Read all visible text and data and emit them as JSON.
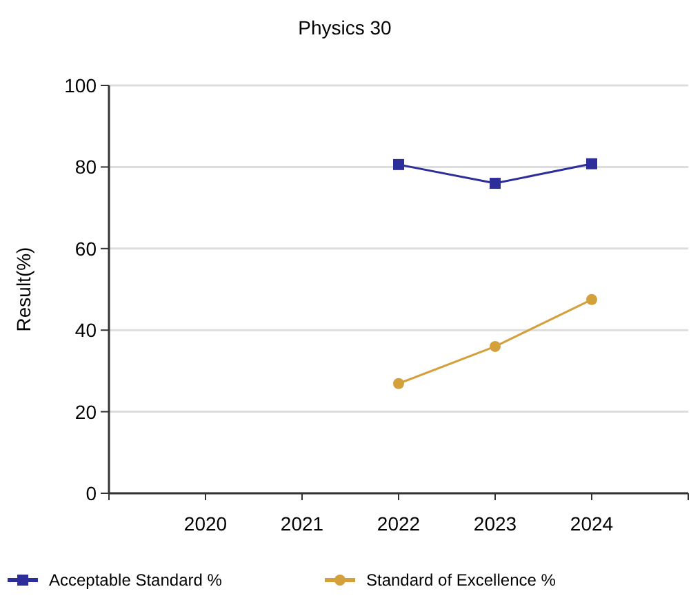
{
  "chart_data": {
    "type": "line",
    "title": "Physics 30",
    "ylabel": "Result(%)",
    "categories": [
      null,
      "2020",
      "2021",
      "2022",
      "2023",
      "2024",
      null
    ],
    "series": [
      {
        "name": "Acceptable Standard %",
        "color": "#2e2e9a",
        "marker": "square",
        "values": [
          null,
          null,
          null,
          80.6,
          76.0,
          80.8,
          null
        ]
      },
      {
        "name": "Standard of Excellence %",
        "color": "#d4a03c",
        "marker": "circle",
        "values": [
          null,
          null,
          null,
          26.9,
          36.0,
          47.5,
          null
        ]
      }
    ],
    "ylim": [
      0,
      100
    ],
    "yticks": [
      0,
      20,
      40,
      60,
      80,
      100
    ],
    "grid": "y",
    "legend": "bottom"
  }
}
